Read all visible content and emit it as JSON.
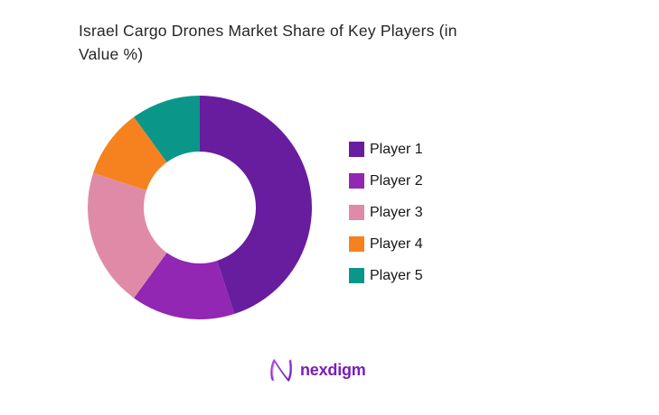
{
  "page": {
    "background": "#ffffff",
    "title_lines": {
      "line1": "Israel Cargo Drones Market Share of Key Players (in",
      "line2": "Value %)"
    }
  },
  "chart_data": {
    "type": "pie",
    "subtype": "donut",
    "title": "Israel Cargo Drones Market Share of Key Players (in Value %)",
    "labels": [
      "Player 1",
      "Player 2",
      "Player 3",
      "Player 4",
      "Player 5"
    ],
    "values": [
      45,
      15,
      20,
      10,
      10
    ],
    "unit": "%",
    "colors": [
      "#681C9E",
      "#9127B3",
      "#DF8BA7",
      "#F5821F",
      "#0A9789"
    ],
    "start_angle_deg": 0,
    "direction": "clockwise",
    "inner_radius_ratio": 0.5,
    "legend_position": "right",
    "data_labels_visible": false,
    "title_color": "#262626",
    "legend_text_color": "#161616"
  },
  "footer": {
    "brand_text": "nexdigm",
    "brand_color": "#7A1FB5",
    "brand_mark": "n-wave-logo"
  }
}
